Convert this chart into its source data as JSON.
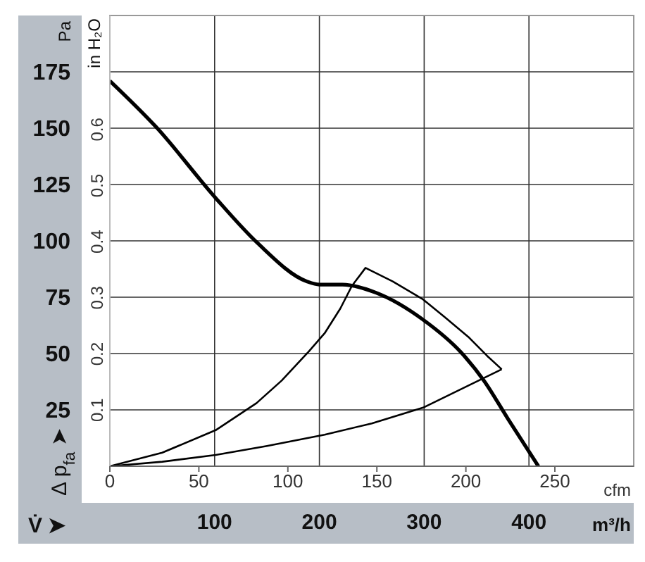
{
  "chart_data": {
    "type": "line",
    "xlabel": "m³/h",
    "ylabel": "Pa",
    "x2label": "cfm",
    "y2label": "in H₂O",
    "annotations": [
      "Δ p$_{fa}$ ➤",
      "V̇ ➤"
    ],
    "xlim": [
      0,
      500
    ],
    "xticks": [
      {
        "value": 0,
        "label": null
      },
      100,
      200,
      300,
      400
    ],
    "ylim": [
      0,
      200
    ],
    "yticks": [
      25,
      50,
      75,
      100,
      125,
      150,
      175
    ],
    "x2lim": [
      0,
      294.3
    ],
    "x2ticks": [
      0,
      50,
      100,
      150,
      200,
      250
    ],
    "y2lim": [
      0,
      0.803
    ],
    "y2ticks": [
      0.1,
      0.2,
      0.3,
      0.4,
      0.5,
      0.6
    ],
    "grid": true,
    "marker": "none",
    "line_style": "solid",
    "series": [
      {
        "color": "#000000",
        "x": [
          0,
          44,
          101,
          141,
          188,
          200,
          222,
          254,
          299,
          335,
          357,
          380,
          409
        ],
        "values": [
          171,
          150.6,
          119,
          99,
          82,
          80.6,
          80.6,
          77,
          65,
          50.6,
          38,
          21,
          0
        ]
      },
      {
        "color": "#000000",
        "x": [
          0,
          50,
          101,
          140,
          164,
          190,
          205,
          220,
          231,
          244,
          270,
          299,
          320,
          343,
          360,
          374
        ],
        "values": [
          0,
          6,
          16,
          28,
          38,
          51,
          59,
          70,
          80,
          88,
          82,
          74,
          66,
          57,
          49,
          43
        ]
      },
      {
        "color": "#000000",
        "x": [
          0,
          50,
          101,
          150,
          205,
          250,
          299,
          343,
          374
        ],
        "values": [
          0,
          2,
          5,
          9,
          14,
          19,
          26,
          36,
          43
        ]
      }
    ]
  }
}
